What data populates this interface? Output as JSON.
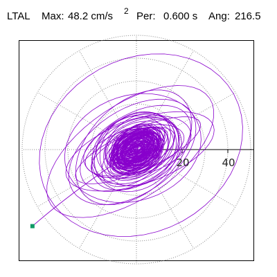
{
  "header": {
    "station": "LTAL",
    "max_label": "Max:",
    "max_value": "48.2 cm/s",
    "max_exponent": "2",
    "period_label": "Per:",
    "period_value": "0.600 s",
    "angle_label": "Ang:",
    "angle_value": "216.5"
  },
  "colors": {
    "trace": "#8800cc",
    "grid": "#888888",
    "axis": "#000000",
    "marker": "#119966"
  },
  "chart_data": {
    "type": "polar-orbit",
    "max_radius": 48.2,
    "max_angle_deg": 216.5,
    "ring_step": 10,
    "rings": [
      10,
      20,
      30,
      40,
      50
    ],
    "spoke_step_deg": 30,
    "tick_labels": [
      "20",
      "40"
    ],
    "tick_values": [
      20,
      40
    ],
    "grid": true,
    "marker_position": [
      -45.5,
      -33.5
    ],
    "orbit_groups": [
      {
        "radius_range": [
          2,
          12
        ],
        "count": 95
      },
      {
        "radius_range": [
          8,
          22
        ],
        "count": 20
      },
      {
        "radius_range": [
          18,
          32
        ],
        "count": 7
      },
      {
        "radius_range": [
          30,
          48.2
        ],
        "count": 4
      }
    ]
  }
}
